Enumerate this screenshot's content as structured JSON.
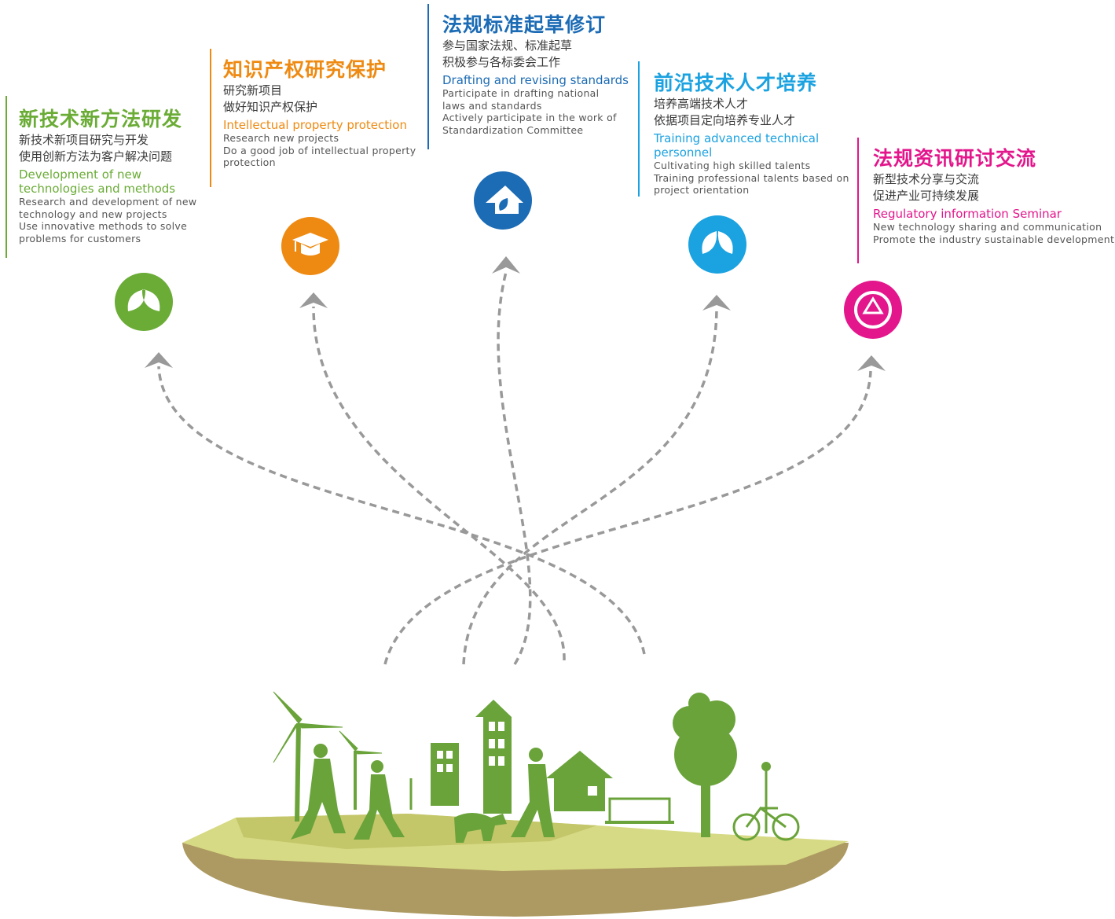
{
  "sections": [
    {
      "title": "新技术新方法研发",
      "zh": [
        "新技术新项目研究与开发",
        "使用创新方法为客户解决问题"
      ],
      "en_title": [
        "Development of new",
        "technologies and methods"
      ],
      "en": [
        "Research and development of new",
        "technology and new projects",
        "Use innovative methods to solve",
        "problems for customers"
      ]
    },
    {
      "title": "知识产权研究保护",
      "zh": [
        "研究新项目",
        "做好知识产权保护"
      ],
      "en_title": [
        "Intellectual property protection"
      ],
      "en": [
        "Research new projects",
        "Do a good job of intellectual property",
        "protection"
      ]
    },
    {
      "title": "法规标准起草修订",
      "zh": [
        "参与国家法规、标准起草",
        "积极参与各标委会工作"
      ],
      "en_title": [
        "Drafting and revising standards"
      ],
      "en": [
        "Participate in drafting national",
        "laws and standards",
        "Actively participate in the work of",
        "Standardization Committee"
      ]
    },
    {
      "title": "前沿技术人才培养",
      "zh": [
        "培养高端技术人才",
        "依据项目定向培养专业人才"
      ],
      "en_title": [
        "Training advanced technical",
        "personnel"
      ],
      "en": [
        "Cultivating high skilled talents",
        "Training professional talents based on",
        "project orientation"
      ]
    },
    {
      "title": "法规资讯研讨交流",
      "zh": [
        "新型技术分享与交流",
        "促进产业可持续发展"
      ],
      "en_title": [
        "Regulatory information Seminar"
      ],
      "en": [
        "New technology sharing and communication",
        "Promote the industry sustainable development"
      ]
    }
  ]
}
